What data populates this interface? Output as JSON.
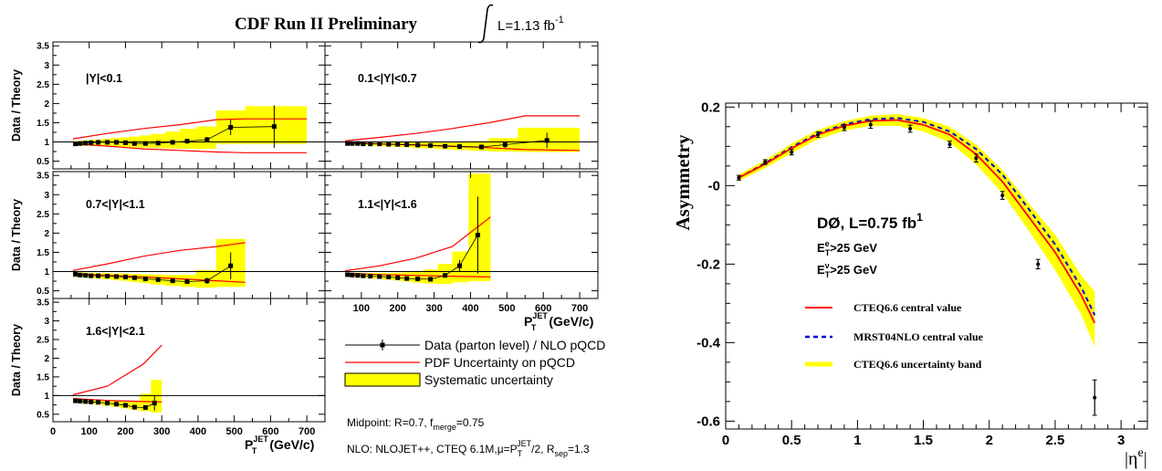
{
  "chart_data": [
    {
      "type": "line",
      "title": "CDF Run II Preliminary",
      "luminosity_label": "L=1.13 fb",
      "luminosity_sup": "-1",
      "ylabel": "Data / Theory",
      "xlabel_main": "P",
      "xlabel_sub": "T",
      "xlabel_sup": "JET",
      "xlabel_unit": "(GeV/c)",
      "xlim": [
        0,
        750
      ],
      "ylim": [
        0.3,
        3.6
      ],
      "x_ticks": [
        "100",
        "200",
        "300",
        "400",
        "500",
        "600",
        "700"
      ],
      "x_tick_values": [
        100,
        200,
        300,
        400,
        500,
        600,
        700
      ],
      "y_ticks": [
        "0.5",
        "1",
        "1.5",
        "2",
        "2.5",
        "3",
        "3.5"
      ],
      "y_tick_values": [
        0.5,
        1,
        1.5,
        2,
        2.5,
        3,
        3.5
      ],
      "legend": {
        "data": "Data (parton level) / NLO pQCD",
        "pdf": "PDF Uncertainty on pQCD",
        "sys": "Systematic uncertainty"
      },
      "notes": {
        "midpoint": "Midpoint:  R=0.7,  f",
        "midpoint_sub": "merge",
        "midpoint_val": "=0.75",
        "nlo": "NLO: NLOJET++, CTEQ 6.1M,μ=P",
        "nlo_sub": "T",
        "nlo_sup": "JET",
        "nlo_mid": "/2, R",
        "nlo_sub2": "sep",
        "nlo_val": "=1.3"
      },
      "panels": [
        {
          "label": "|Y|<0.1",
          "points": [
            [
              62,
              0.95
            ],
            [
              75,
              0.96
            ],
            [
              90,
              0.97
            ],
            [
              105,
              0.98
            ],
            [
              125,
              0.99
            ],
            [
              150,
              0.99
            ],
            [
              175,
              0.99
            ],
            [
              200,
              0.98
            ],
            [
              225,
              0.96
            ],
            [
              255,
              0.96
            ],
            [
              290,
              0.97
            ],
            [
              330,
              0.99
            ],
            [
              370,
              1.02
            ],
            [
              425,
              1.06
            ],
            [
              490,
              1.38
            ],
            [
              610,
              1.4
            ]
          ],
          "errors": [
            0.02,
            0.02,
            0.02,
            0.02,
            0.02,
            0.02,
            0.02,
            0.02,
            0.03,
            0.03,
            0.03,
            0.04,
            0.05,
            0.07,
            0.2,
            0.55
          ],
          "sys_edges": [
            55,
            70,
            85,
            100,
            115,
            135,
            160,
            185,
            210,
            240,
            270,
            310,
            350,
            395,
            450,
            530,
            700
          ],
          "sys_lo": [
            0.9,
            0.9,
            0.9,
            0.9,
            0.89,
            0.89,
            0.88,
            0.87,
            0.86,
            0.85,
            0.84,
            0.83,
            0.82,
            0.82,
            0.95,
            0.95
          ],
          "sys_hi": [
            1.02,
            1.03,
            1.04,
            1.05,
            1.06,
            1.08,
            1.1,
            1.12,
            1.14,
            1.17,
            1.21,
            1.27,
            1.34,
            1.4,
            1.82,
            1.93
          ],
          "pdf_x": [
            55,
            150,
            250,
            350,
            450,
            530,
            700
          ],
          "pdf_hi": [
            1.08,
            1.22,
            1.35,
            1.45,
            1.58,
            1.6,
            1.6
          ],
          "pdf_lo": [
            0.95,
            0.89,
            0.82,
            0.78,
            0.74,
            0.72,
            0.72
          ]
        },
        {
          "label": "0.1<|Y|<0.7",
          "points": [
            [
              62,
              0.96
            ],
            [
              75,
              0.96
            ],
            [
              90,
              0.96
            ],
            [
              105,
              0.95
            ],
            [
              125,
              0.95
            ],
            [
              150,
              0.95
            ],
            [
              175,
              0.94
            ],
            [
              200,
              0.94
            ],
            [
              225,
              0.93
            ],
            [
              255,
              0.92
            ],
            [
              290,
              0.91
            ],
            [
              330,
              0.89
            ],
            [
              370,
              0.88
            ],
            [
              430,
              0.87
            ],
            [
              495,
              0.93
            ],
            [
              610,
              1.04
            ]
          ],
          "errors": [
            0.02,
            0.02,
            0.02,
            0.02,
            0.02,
            0.02,
            0.02,
            0.02,
            0.02,
            0.02,
            0.02,
            0.03,
            0.03,
            0.05,
            0.08,
            0.2
          ],
          "sys_edges": [
            55,
            70,
            85,
            100,
            115,
            135,
            160,
            185,
            210,
            240,
            270,
            310,
            350,
            395,
            450,
            530,
            700
          ],
          "sys_lo": [
            0.92,
            0.92,
            0.91,
            0.91,
            0.9,
            0.89,
            0.88,
            0.87,
            0.86,
            0.84,
            0.83,
            0.81,
            0.79,
            0.77,
            0.75,
            0.74
          ],
          "sys_hi": [
            1.0,
            1.0,
            1.0,
            1.0,
            1.0,
            1.0,
            1.0,
            1.0,
            1.0,
            1.0,
            1.0,
            1.0,
            1.0,
            1.02,
            1.1,
            1.37
          ],
          "pdf_x": [
            55,
            150,
            250,
            350,
            450,
            550,
            700
          ],
          "pdf_hi": [
            1.03,
            1.12,
            1.22,
            1.35,
            1.5,
            1.68,
            1.68
          ],
          "pdf_lo": [
            0.98,
            0.95,
            0.92,
            0.89,
            0.85,
            0.8,
            0.78
          ]
        },
        {
          "label": "0.7<|Y|<1.1",
          "points": [
            [
              62,
              0.93
            ],
            [
              75,
              0.91
            ],
            [
              90,
              0.9
            ],
            [
              105,
              0.89
            ],
            [
              125,
              0.89
            ],
            [
              150,
              0.88
            ],
            [
              175,
              0.87
            ],
            [
              200,
              0.86
            ],
            [
              225,
              0.84
            ],
            [
              255,
              0.81
            ],
            [
              290,
              0.79
            ],
            [
              330,
              0.76
            ],
            [
              370,
              0.74
            ],
            [
              425,
              0.76
            ],
            [
              490,
              1.15
            ]
          ],
          "errors": [
            0.02,
            0.02,
            0.02,
            0.02,
            0.02,
            0.02,
            0.02,
            0.02,
            0.02,
            0.02,
            0.03,
            0.03,
            0.04,
            0.08,
            0.35
          ],
          "sys_edges": [
            55,
            70,
            85,
            100,
            115,
            135,
            160,
            185,
            210,
            240,
            270,
            310,
            350,
            395,
            450,
            530
          ],
          "sys_lo": [
            0.86,
            0.85,
            0.84,
            0.83,
            0.82,
            0.8,
            0.78,
            0.76,
            0.73,
            0.7,
            0.66,
            0.63,
            0.6,
            0.58,
            0.6
          ],
          "sys_hi": [
            0.98,
            0.98,
            0.97,
            0.97,
            0.96,
            0.96,
            0.95,
            0.95,
            0.94,
            0.93,
            0.92,
            0.91,
            0.92,
            1.04,
            1.85
          ],
          "pdf_x": [
            55,
            150,
            250,
            350,
            450,
            530
          ],
          "pdf_hi": [
            1.03,
            1.2,
            1.4,
            1.55,
            1.65,
            1.75
          ],
          "pdf_lo": [
            0.95,
            0.9,
            0.86,
            0.81,
            0.76,
            0.72
          ]
        },
        {
          "label": "1.1<|Y|<1.6",
          "points": [
            [
              62,
              0.92
            ],
            [
              75,
              0.91
            ],
            [
              90,
              0.9
            ],
            [
              105,
              0.89
            ],
            [
              125,
              0.88
            ],
            [
              150,
              0.87
            ],
            [
              175,
              0.86
            ],
            [
              200,
              0.84
            ],
            [
              225,
              0.82
            ],
            [
              255,
              0.81
            ],
            [
              290,
              0.8
            ],
            [
              330,
              0.9
            ],
            [
              370,
              1.15
            ],
            [
              420,
              1.95
            ]
          ],
          "errors": [
            0.02,
            0.02,
            0.02,
            0.02,
            0.02,
            0.02,
            0.02,
            0.02,
            0.02,
            0.03,
            0.03,
            0.05,
            0.15,
            1.0
          ],
          "sys_edges": [
            55,
            70,
            85,
            100,
            115,
            135,
            160,
            185,
            210,
            240,
            270,
            310,
            350,
            395,
            455
          ],
          "sys_lo": [
            0.87,
            0.86,
            0.85,
            0.84,
            0.83,
            0.81,
            0.79,
            0.77,
            0.74,
            0.71,
            0.69,
            0.68,
            0.72,
            0.75
          ],
          "sys_hi": [
            0.97,
            0.97,
            0.97,
            0.96,
            0.96,
            0.96,
            0.96,
            0.97,
            0.98,
            1.0,
            1.05,
            1.2,
            1.52,
            3.55
          ],
          "pdf_x": [
            55,
            150,
            250,
            350,
            455
          ],
          "pdf_hi": [
            1.02,
            1.15,
            1.35,
            1.65,
            2.42
          ],
          "pdf_lo": [
            0.96,
            0.92,
            0.9,
            0.88,
            0.86
          ]
        },
        {
          "label": "1.6<|Y|<2.1",
          "points": [
            [
              62,
              0.86
            ],
            [
              75,
              0.85
            ],
            [
              90,
              0.84
            ],
            [
              105,
              0.83
            ],
            [
              125,
              0.82
            ],
            [
              150,
              0.8
            ],
            [
              175,
              0.77
            ],
            [
              200,
              0.74
            ],
            [
              225,
              0.69
            ],
            [
              255,
              0.68
            ],
            [
              280,
              0.8
            ]
          ],
          "errors": [
            0.02,
            0.02,
            0.02,
            0.02,
            0.02,
            0.02,
            0.02,
            0.03,
            0.04,
            0.06,
            0.2
          ],
          "sys_edges": [
            55,
            70,
            85,
            100,
            115,
            135,
            160,
            185,
            210,
            240,
            270,
            300
          ],
          "sys_lo": [
            0.81,
            0.8,
            0.79,
            0.78,
            0.76,
            0.73,
            0.7,
            0.66,
            0.62,
            0.58,
            0.55
          ],
          "sys_hi": [
            0.9,
            0.9,
            0.89,
            0.88,
            0.87,
            0.86,
            0.85,
            0.84,
            0.84,
            1.05,
            1.42
          ],
          "pdf_x": [
            55,
            150,
            250,
            300
          ],
          "pdf_hi": [
            1.02,
            1.25,
            1.85,
            2.35
          ],
          "pdf_lo": [
            0.92,
            0.87,
            0.84,
            0.83
          ]
        }
      ]
    },
    {
      "type": "line",
      "ylabel": "Asymmetry",
      "xlabel": "|η",
      "xlabel_sup": "e",
      "xlabel_end": "|",
      "xlim": [
        0,
        3.2
      ],
      "ylim": [
        -0.62,
        0.21
      ],
      "x_ticks": [
        "0",
        "0.5",
        "1",
        "1.5",
        "2",
        "2.5",
        "3"
      ],
      "x_tick_values": [
        0,
        0.5,
        1,
        1.5,
        2,
        2.5,
        3
      ],
      "y_ticks": [
        "0.2",
        "-0",
        "-0.2",
        "-0.4",
        "-0.6"
      ],
      "y_tick_values": [
        0.2,
        0,
        -0.2,
        -0.4,
        -0.6
      ],
      "experiment": "DØ, L=0.75 fb",
      "experiment_sup": "1",
      "cut1": "E",
      "cut1_sub": "T",
      "cut1_sup": "e",
      "cut1_val": ">25 GeV",
      "cut2": "E",
      "cut2_sub": "T",
      "cut2_sup": "ν",
      "cut2_val": ">25 GeV",
      "series": [
        {
          "name": "CTEQ6.6 central value",
          "x": [
            0.1,
            0.3,
            0.5,
            0.7,
            0.9,
            1.1,
            1.3,
            1.5,
            1.7,
            1.9,
            2.1,
            2.3,
            2.5,
            2.7,
            2.8
          ],
          "y": [
            0.02,
            0.055,
            0.095,
            0.13,
            0.152,
            0.165,
            0.167,
            0.155,
            0.13,
            0.08,
            0.01,
            -0.08,
            -0.17,
            -0.28,
            -0.35
          ]
        },
        {
          "name": "MRST04NLO central value",
          "x": [
            0.1,
            0.3,
            0.5,
            0.7,
            0.9,
            1.1,
            1.3,
            1.5,
            1.7,
            1.9,
            2.1,
            2.3,
            2.5,
            2.7,
            2.8
          ],
          "y": [
            0.02,
            0.057,
            0.098,
            0.133,
            0.156,
            0.169,
            0.172,
            0.162,
            0.138,
            0.093,
            0.028,
            -0.06,
            -0.15,
            -0.26,
            -0.33
          ]
        },
        {
          "name": "CTEQ6.6 uncertainty band",
          "x": [
            0.1,
            0.3,
            0.5,
            0.7,
            0.9,
            1.1,
            1.3,
            1.5,
            1.7,
            1.9,
            2.1,
            2.3,
            2.5,
            2.7,
            2.8
          ],
          "y_lo": [
            0.012,
            0.045,
            0.083,
            0.118,
            0.14,
            0.152,
            0.152,
            0.138,
            0.11,
            0.055,
            -0.02,
            -0.115,
            -0.215,
            -0.33,
            -0.41
          ],
          "y_hi": [
            0.028,
            0.065,
            0.107,
            0.142,
            0.164,
            0.178,
            0.182,
            0.172,
            0.15,
            0.105,
            0.04,
            -0.045,
            -0.125,
            -0.23,
            -0.27
          ]
        }
      ],
      "data": {
        "x": [
          0.1,
          0.3,
          0.5,
          0.7,
          0.9,
          1.1,
          1.4,
          1.7,
          1.9,
          2.1,
          2.37,
          2.8
        ],
        "y": [
          0.02,
          0.06,
          0.085,
          0.13,
          0.148,
          0.155,
          0.145,
          0.105,
          0.07,
          -0.025,
          -0.2,
          -0.54
        ],
        "err": [
          0.006,
          0.006,
          0.007,
          0.007,
          0.008,
          0.009,
          0.009,
          0.008,
          0.01,
          0.01,
          0.012,
          0.045
        ]
      },
      "colors": {
        "band": "#ffff00",
        "cteq": "#ff0000",
        "mrst": "#0000cc"
      }
    }
  ],
  "colors": {
    "sys": "#ffff00",
    "pdf": "#ff0000",
    "data": "#000000"
  }
}
